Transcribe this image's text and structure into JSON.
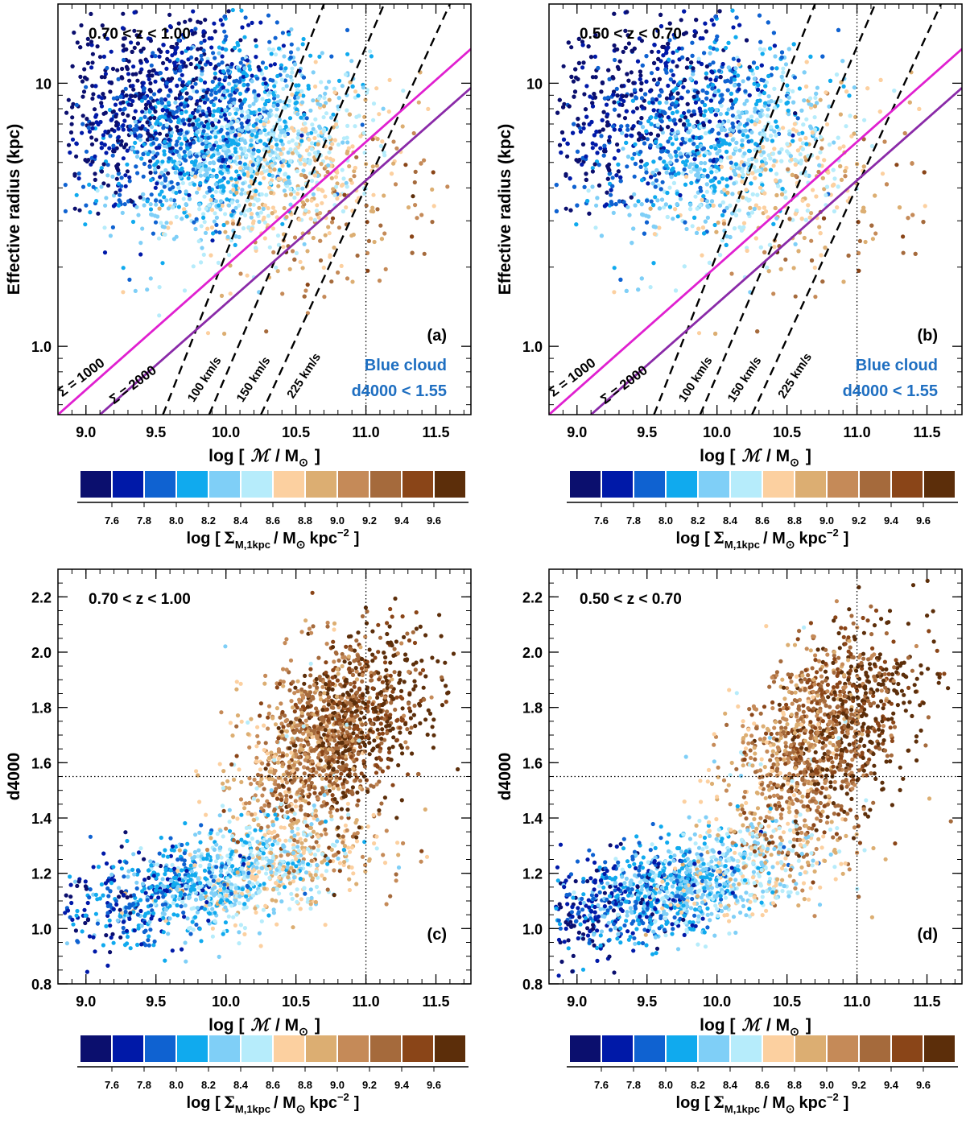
{
  "colors": {
    "bins": [
      "#0b0f6e",
      "#0019a8",
      "#0f62d1",
      "#10aaee",
      "#7fcff7",
      "#b6ecfb",
      "#fcd0a0",
      "#dcae72",
      "#c58a58",
      "#a56a3c",
      "#8a4518",
      "#5c2e0a"
    ],
    "sigma1000": "#e020d0",
    "sigma2000": "#8a2aa8",
    "annotation": "#1f6fc1"
  },
  "colorbar": {
    "ticks": [
      "7.6",
      "7.8",
      "8.0",
      "8.2",
      "8.4",
      "8.6",
      "8.8",
      "9.0",
      "9.2",
      "9.4",
      "9.6"
    ],
    "title_main": "log [",
    "title_sigma": "Σ",
    "title_sub": "M,1kpc",
    "title_rest": "/ M",
    "title_sun": "⊙",
    "title_unit": "kpc",
    "title_exp": "−2",
    "title_close": "]"
  },
  "xaxis": {
    "title_open": "log [",
    "title_M": "ℳ",
    "title_slash": "/ M",
    "title_sun": "⊙",
    "title_close": "]"
  },
  "chart_data": [
    {
      "type": "scatter",
      "panel": "a",
      "zrange": "0.70 < z < 1.00",
      "ylabel": "Effective radius (kpc)",
      "yscale": "log",
      "xlim": [
        8.8,
        11.75
      ],
      "ylim": [
        0.55,
        20
      ],
      "xticks": [
        "9.0",
        "9.5",
        "10.0",
        "10.5",
        "11.0",
        "11.5"
      ],
      "yticks": [
        "1.0",
        "10"
      ],
      "reference_x": 11.0,
      "lines": {
        "sigma_1000": "Σ = 1000",
        "sigma_2000": "Σ = 2000",
        "velocities": [
          "100 km/s",
          "150 km/s",
          "225 km/s"
        ]
      },
      "annotation": [
        "Blue cloud",
        "d4000 < 1.55"
      ],
      "colorbar_label": "log [Σ_M,1kpc / M⊙ kpc^-2]"
    },
    {
      "type": "scatter",
      "panel": "b",
      "zrange": "0.50 < z < 0.70",
      "ylabel": "Effective radius (kpc)",
      "yscale": "log",
      "xlim": [
        8.8,
        11.75
      ],
      "ylim": [
        0.55,
        20
      ],
      "xticks": [
        "9.0",
        "9.5",
        "10.0",
        "10.5",
        "11.0",
        "11.5"
      ],
      "yticks": [
        "1.0",
        "10"
      ],
      "reference_x": 11.0,
      "lines": {
        "sigma_1000": "Σ = 1000",
        "sigma_2000": "Σ = 2000",
        "velocities": [
          "100 km/s",
          "150 km/s",
          "225 km/s"
        ]
      },
      "annotation": [
        "Blue cloud",
        "d4000 < 1.55"
      ],
      "colorbar_label": "log [Σ_M,1kpc / M⊙ kpc^-2]"
    },
    {
      "type": "scatter",
      "panel": "c",
      "zrange": "0.70 < z < 1.00",
      "ylabel": "d4000",
      "yscale": "linear",
      "xlim": [
        8.8,
        11.75
      ],
      "ylim": [
        0.8,
        2.3
      ],
      "xticks": [
        "9.0",
        "9.5",
        "10.0",
        "10.5",
        "11.0",
        "11.5"
      ],
      "yticks": [
        "0.8",
        "1.0",
        "1.2",
        "1.4",
        "1.6",
        "1.8",
        "2.0",
        "2.2"
      ],
      "reference_x": 11.0,
      "reference_y": 1.55,
      "colorbar_label": "log [Σ_M,1kpc / M⊙ kpc^-2]"
    },
    {
      "type": "scatter",
      "panel": "d",
      "zrange": "0.50 < z < 0.70",
      "ylabel": "d4000",
      "yscale": "linear",
      "xlim": [
        8.8,
        11.75
      ],
      "ylim": [
        0.8,
        2.3
      ],
      "xticks": [
        "9.0",
        "9.5",
        "10.0",
        "10.5",
        "11.0",
        "11.5"
      ],
      "yticks": [
        "0.8",
        "1.0",
        "1.2",
        "1.4",
        "1.6",
        "1.8",
        "2.0",
        "2.2"
      ],
      "reference_x": 11.0,
      "reference_y": 1.55,
      "colorbar_label": "log [Σ_M,1kpc / M⊙ kpc^-2]"
    }
  ]
}
